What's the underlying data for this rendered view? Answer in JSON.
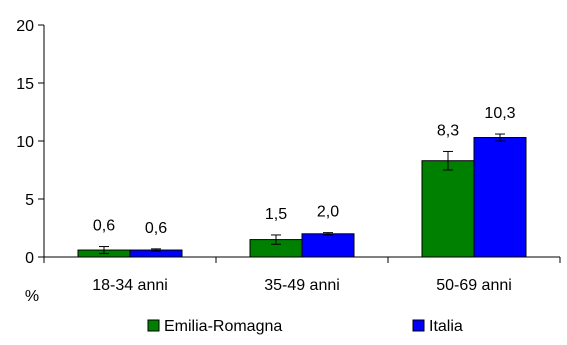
{
  "chart_data": {
    "type": "bar",
    "categories": [
      "18-34 anni",
      "35-49 anni",
      "50-69 anni"
    ],
    "series": [
      {
        "name": "Emilia-Romagna",
        "color": "#008000",
        "values": [
          0.6,
          1.5,
          8.3
        ],
        "errors": [
          0.3,
          0.4,
          0.8
        ]
      },
      {
        "name": "Italia",
        "color": "#0000ff",
        "values": [
          0.6,
          2.0,
          10.3
        ],
        "errors": [
          0.1,
          0.1,
          0.3
        ]
      }
    ],
    "data_labels": [
      [
        "0,6",
        "1,5",
        "8,3"
      ],
      [
        "0,6",
        "2,0",
        "10,3"
      ]
    ],
    "y_ticks": [
      "0",
      "5",
      "10",
      "15",
      "20"
    ],
    "ylim": [
      0,
      20
    ],
    "unit_label": "%",
    "legend_position": "bottom",
    "grid": false
  }
}
